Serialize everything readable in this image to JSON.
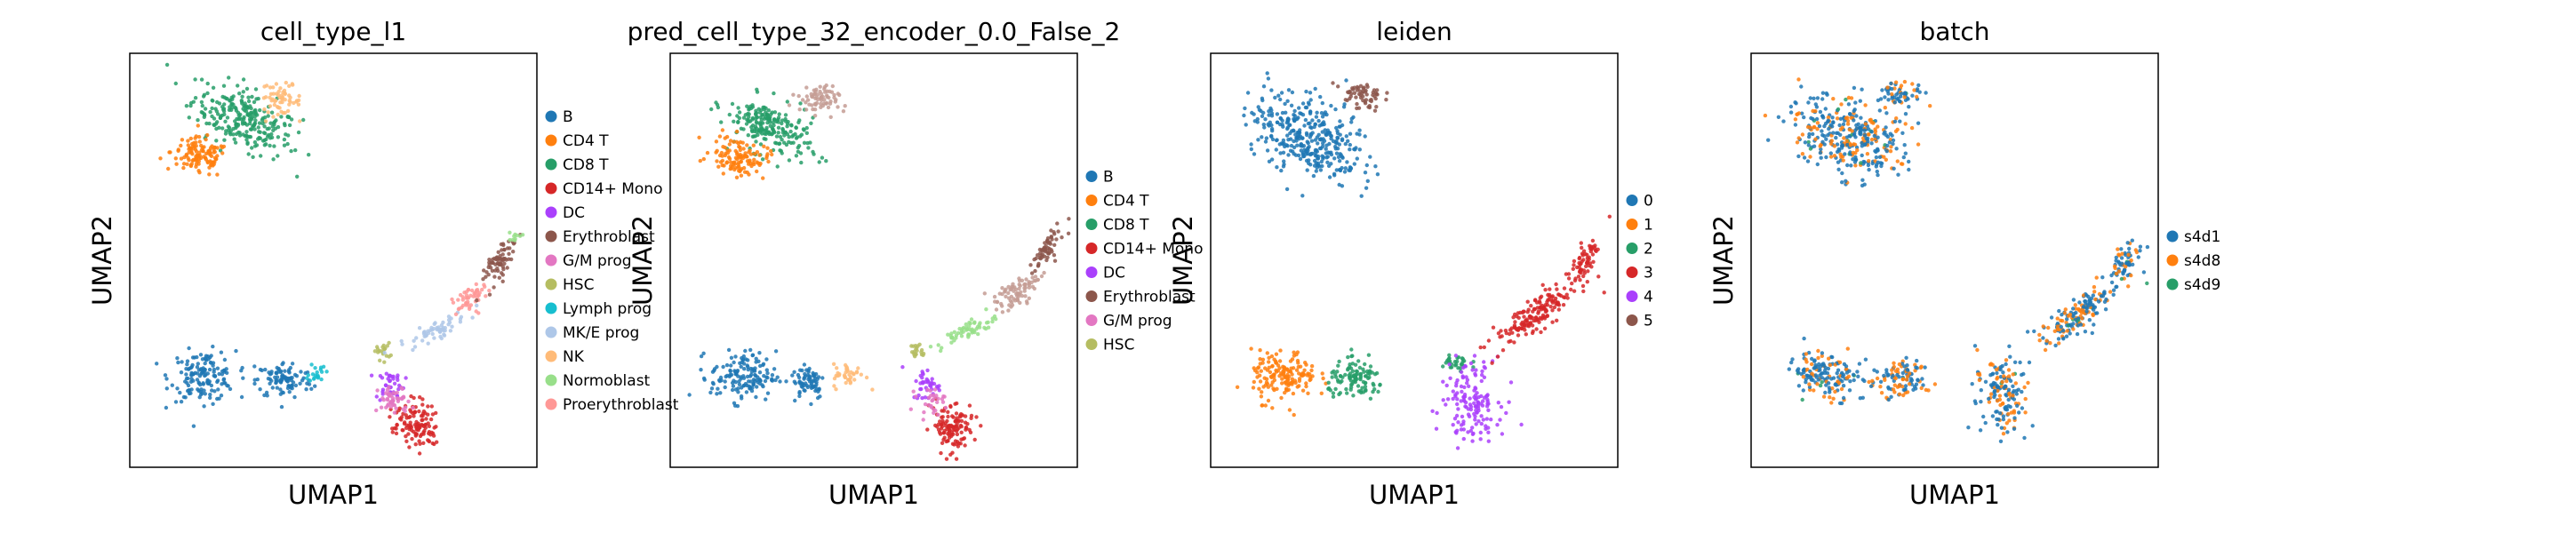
{
  "chart_data": [
    {
      "type": "scatter",
      "title": "cell_type_l1",
      "xlabel": "UMAP1",
      "ylabel": "UMAP2",
      "grid": false,
      "legend_position": "right",
      "legend": [
        {
          "name": "B",
          "color": "#1f77b4"
        },
        {
          "name": "CD4 T",
          "color": "#ff7f0e"
        },
        {
          "name": "CD8 T",
          "color": "#279e68"
        },
        {
          "name": "CD14+ Mono",
          "color": "#d62728"
        },
        {
          "name": "DC",
          "color": "#aa40fc"
        },
        {
          "name": "Erythroblast",
          "color": "#8c564b"
        },
        {
          "name": "G/M prog",
          "color": "#e377c2"
        },
        {
          "name": "HSC",
          "color": "#b5bd61"
        },
        {
          "name": "Lymph prog",
          "color": "#17becf"
        },
        {
          "name": "MK/E prog",
          "color": "#aec7e8"
        },
        {
          "name": "NK",
          "color": "#ffbb78"
        },
        {
          "name": "Normoblast",
          "color": "#98df8a"
        },
        {
          "name": "Proerythroblast",
          "color": "#ff9896"
        }
      ],
      "clusters": [
        {
          "label": "CD8 T",
          "cx": 0.28,
          "cy": 0.84,
          "rx": 0.13,
          "ry": 0.07,
          "rot": -25,
          "n": 260
        },
        {
          "label": "NK",
          "cx": 0.37,
          "cy": 0.89,
          "rx": 0.05,
          "ry": 0.035,
          "rot": -10,
          "n": 60
        },
        {
          "label": "CD4 T",
          "cx": 0.17,
          "cy": 0.75,
          "rx": 0.07,
          "ry": 0.045,
          "rot": -10,
          "n": 120
        },
        {
          "label": "B",
          "cx": 0.18,
          "cy": 0.22,
          "rx": 0.08,
          "ry": 0.06,
          "rot": 0,
          "n": 150
        },
        {
          "label": "B",
          "cx": 0.38,
          "cy": 0.21,
          "rx": 0.07,
          "ry": 0.045,
          "rot": 0,
          "n": 100
        },
        {
          "label": "Lymph prog",
          "cx": 0.46,
          "cy": 0.23,
          "rx": 0.02,
          "ry": 0.025,
          "rot": 0,
          "n": 20
        },
        {
          "label": "DC",
          "cx": 0.64,
          "cy": 0.2,
          "rx": 0.035,
          "ry": 0.04,
          "rot": 0,
          "n": 40
        },
        {
          "label": "CD14+ Mono",
          "cx": 0.7,
          "cy": 0.1,
          "rx": 0.05,
          "ry": 0.06,
          "rot": 20,
          "n": 120
        },
        {
          "label": "G/M prog",
          "cx": 0.65,
          "cy": 0.16,
          "rx": 0.04,
          "ry": 0.035,
          "rot": 0,
          "n": 50
        },
        {
          "label": "HSC",
          "cx": 0.62,
          "cy": 0.28,
          "rx": 0.02,
          "ry": 0.02,
          "rot": 0,
          "n": 20
        },
        {
          "label": "MK/E prog",
          "cx": 0.75,
          "cy": 0.33,
          "rx": 0.09,
          "ry": 0.02,
          "rot": 25,
          "n": 60
        },
        {
          "label": "Proerythroblast",
          "cx": 0.84,
          "cy": 0.41,
          "rx": 0.05,
          "ry": 0.025,
          "rot": 40,
          "n": 50
        },
        {
          "label": "Erythroblast",
          "cx": 0.91,
          "cy": 0.5,
          "rx": 0.06,
          "ry": 0.022,
          "rot": 60,
          "n": 70
        },
        {
          "label": "Normoblast",
          "cx": 0.95,
          "cy": 0.56,
          "rx": 0.02,
          "ry": 0.015,
          "rot": 60,
          "n": 10
        }
      ]
    },
    {
      "type": "scatter",
      "title": "pred_cell_type_32_encoder_0.0_False_2",
      "xlabel": "UMAP1",
      "ylabel": "UMAP2",
      "grid": false,
      "legend_position": "right",
      "legend": [
        {
          "name": "B",
          "color": "#1f77b4"
        },
        {
          "name": "CD4 T",
          "color": "#ff7f0e"
        },
        {
          "name": "CD8 T",
          "color": "#279e68"
        },
        {
          "name": "CD14+ Mono",
          "color": "#d62728"
        },
        {
          "name": "DC",
          "color": "#aa40fc"
        },
        {
          "name": "Erythroblast",
          "color": "#8c564b"
        },
        {
          "name": "G/M prog",
          "color": "#e377c2"
        },
        {
          "name": "HSC",
          "color": "#b5bd61"
        }
      ],
      "clusters": [
        {
          "label": "CD8 T",
          "cx": 0.24,
          "cy": 0.82,
          "rx": 0.11,
          "ry": 0.06,
          "rot": -25,
          "n": 220
        },
        {
          "label": "CD4 T",
          "cx": 0.17,
          "cy": 0.75,
          "rx": 0.07,
          "ry": 0.045,
          "rot": -10,
          "n": 120
        },
        {
          "label": "Proerythroblast",
          "cx": 0.36,
          "cy": 0.89,
          "rx": 0.05,
          "ry": 0.035,
          "rot": -10,
          "n": 70
        },
        {
          "label": "B",
          "cx": 0.18,
          "cy": 0.22,
          "rx": 0.08,
          "ry": 0.06,
          "rot": 0,
          "n": 150
        },
        {
          "label": "B",
          "cx": 0.34,
          "cy": 0.21,
          "rx": 0.04,
          "ry": 0.045,
          "rot": 0,
          "n": 70
        },
        {
          "label": "NK",
          "cx": 0.44,
          "cy": 0.22,
          "rx": 0.04,
          "ry": 0.03,
          "rot": 0,
          "n": 40
        },
        {
          "label": "DC",
          "cx": 0.63,
          "cy": 0.2,
          "rx": 0.035,
          "ry": 0.04,
          "rot": 0,
          "n": 40
        },
        {
          "label": "CD14+ Mono",
          "cx": 0.69,
          "cy": 0.1,
          "rx": 0.05,
          "ry": 0.06,
          "rot": 20,
          "n": 120
        },
        {
          "label": "G/M prog",
          "cx": 0.64,
          "cy": 0.16,
          "rx": 0.035,
          "ry": 0.03,
          "rot": 0,
          "n": 30
        },
        {
          "label": "HSC",
          "cx": 0.61,
          "cy": 0.28,
          "rx": 0.02,
          "ry": 0.02,
          "rot": 0,
          "n": 20
        },
        {
          "label": "Normoblast",
          "cx": 0.73,
          "cy": 0.33,
          "rx": 0.08,
          "ry": 0.02,
          "rot": 25,
          "n": 60
        },
        {
          "label": "Proerythroblast",
          "cx": 0.85,
          "cy": 0.42,
          "rx": 0.06,
          "ry": 0.028,
          "rot": 40,
          "n": 80
        },
        {
          "label": "Erythroblast",
          "cx": 0.92,
          "cy": 0.52,
          "rx": 0.06,
          "ry": 0.022,
          "rot": 60,
          "n": 60
        }
      ],
      "extra_colors": {
        "Proerythroblast": "#c49c94",
        "NK": "#ffbb78",
        "Normoblast": "#98df8a"
      }
    },
    {
      "type": "scatter",
      "title": "leiden",
      "xlabel": "UMAP1",
      "ylabel": "UMAP2",
      "grid": false,
      "legend_position": "right",
      "legend": [
        {
          "name": "0",
          "color": "#1f77b4"
        },
        {
          "name": "1",
          "color": "#ff7f0e"
        },
        {
          "name": "2",
          "color": "#279e68"
        },
        {
          "name": "3",
          "color": "#d62728"
        },
        {
          "name": "4",
          "color": "#aa40fc"
        },
        {
          "name": "5",
          "color": "#8c564b"
        }
      ],
      "clusters": [
        {
          "label": "0",
          "cx": 0.24,
          "cy": 0.8,
          "rx": 0.15,
          "ry": 0.09,
          "rot": -25,
          "n": 360
        },
        {
          "label": "5",
          "cx": 0.37,
          "cy": 0.9,
          "rx": 0.05,
          "ry": 0.035,
          "rot": -10,
          "n": 60
        },
        {
          "label": "1",
          "cx": 0.18,
          "cy": 0.22,
          "rx": 0.08,
          "ry": 0.06,
          "rot": 0,
          "n": 160
        },
        {
          "label": "2",
          "cx": 0.36,
          "cy": 0.21,
          "rx": 0.07,
          "ry": 0.045,
          "rot": 0,
          "n": 110
        },
        {
          "label": "2",
          "cx": 0.6,
          "cy": 0.25,
          "rx": 0.04,
          "ry": 0.025,
          "rot": 0,
          "n": 30
        },
        {
          "label": "4",
          "cx": 0.64,
          "cy": 0.16,
          "rx": 0.07,
          "ry": 0.09,
          "rot": 10,
          "n": 150
        },
        {
          "label": "3",
          "cx": 0.8,
          "cy": 0.37,
          "rx": 0.13,
          "ry": 0.035,
          "rot": 35,
          "n": 170
        },
        {
          "label": "3",
          "cx": 0.92,
          "cy": 0.5,
          "rx": 0.06,
          "ry": 0.025,
          "rot": 60,
          "n": 60
        }
      ]
    },
    {
      "type": "scatter",
      "title": "batch",
      "xlabel": "UMAP1",
      "ylabel": "UMAP2",
      "grid": false,
      "legend_position": "right",
      "legend": [
        {
          "name": "s4d1",
          "color": "#1f77b4"
        },
        {
          "name": "s4d8",
          "color": "#ff7f0e"
        },
        {
          "name": "s4d9",
          "color": "#279e68"
        }
      ],
      "clusters": [
        {
          "label": "mix",
          "cx": 0.24,
          "cy": 0.8,
          "rx": 0.15,
          "ry": 0.09,
          "rot": -25,
          "n": 360
        },
        {
          "label": "mix",
          "cx": 0.37,
          "cy": 0.9,
          "rx": 0.05,
          "ry": 0.035,
          "rot": -10,
          "n": 60
        },
        {
          "label": "mix",
          "cx": 0.18,
          "cy": 0.22,
          "rx": 0.08,
          "ry": 0.06,
          "rot": 0,
          "n": 160
        },
        {
          "label": "mix",
          "cx": 0.36,
          "cy": 0.21,
          "rx": 0.07,
          "ry": 0.045,
          "rot": 0,
          "n": 110
        },
        {
          "label": "mix",
          "cx": 0.62,
          "cy": 0.18,
          "rx": 0.06,
          "ry": 0.09,
          "rot": 10,
          "n": 160
        },
        {
          "label": "mix",
          "cx": 0.8,
          "cy": 0.37,
          "rx": 0.13,
          "ry": 0.035,
          "rot": 35,
          "n": 170
        },
        {
          "label": "mix",
          "cx": 0.92,
          "cy": 0.5,
          "rx": 0.06,
          "ry": 0.025,
          "rot": 60,
          "n": 60
        }
      ]
    }
  ]
}
